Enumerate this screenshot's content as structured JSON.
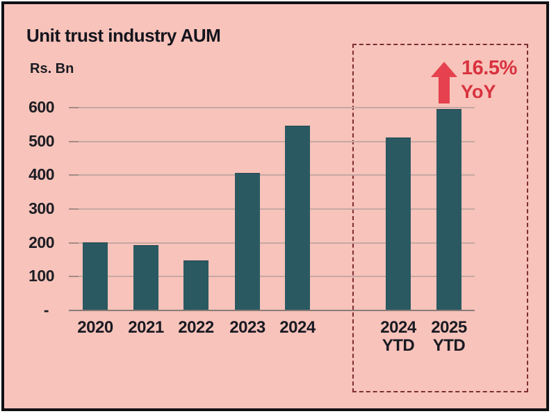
{
  "header": {
    "title": "Unit trust industry AUM",
    "unit_label": "Rs. Bn"
  },
  "colors": {
    "background": "#f7c3ba",
    "bar": "#2a5962",
    "frame_border": "#101014",
    "dashed_box": "#7e2d35",
    "gridline": "#c7a8a3",
    "baseline": "#877c75",
    "text": "#1a1a22",
    "accent_red": "#d8323f",
    "arrow_red": "#e5414e"
  },
  "chart_data": {
    "type": "bar",
    "title": "Unit trust industry AUM",
    "ylabel": "Rs. Bn",
    "xlabel": "",
    "ylim": [
      0,
      600
    ],
    "ytick_interval": 100,
    "ytick_labels": [
      "600",
      "500",
      "400",
      "300",
      "200",
      "100",
      "-"
    ],
    "grid": true,
    "legend": false,
    "categories": [
      "2020",
      "2021",
      "2022",
      "2023",
      "2024",
      "2024\nYTD",
      "2025\nYTD"
    ],
    "values": [
      200,
      192,
      145,
      405,
      545,
      510,
      594
    ],
    "highlight": {
      "categories": [
        "2024 YTD",
        "2025 YTD"
      ],
      "style": "dashed-box",
      "annotation_value": "16.5%",
      "annotation_label": "YoY",
      "annotation_icon": "up-arrow"
    }
  }
}
